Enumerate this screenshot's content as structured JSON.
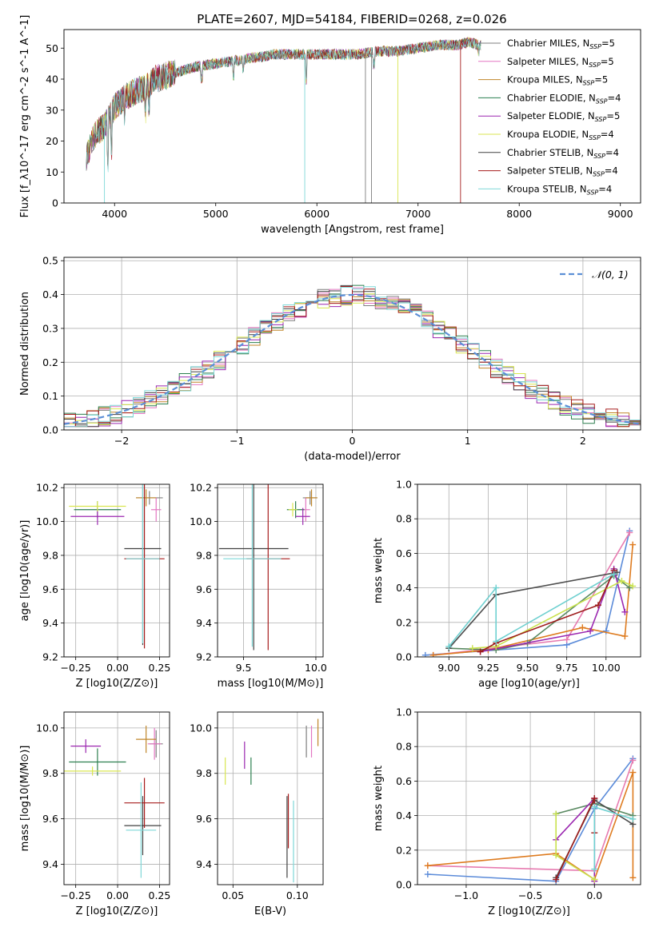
{
  "figure": {
    "title": "PLATE=2607, MJD=54184, FIBERID=0268, z=0.026"
  },
  "colors": {
    "model_colors": [
      "#7f7f7f",
      "#e377c2",
      "#c0862a",
      "#2c7f4f",
      "#9b27b0",
      "#d9e650",
      "#404040",
      "#a61c1c",
      "#7fd8d8"
    ],
    "weight_colors": [
      "#5b8bd9",
      "#e77bb0",
      "#de7b1f",
      "#5a8a62",
      "#9b27b0",
      "#c9e24d",
      "#4d4d4d",
      "#9e1c1c",
      "#6fd0d0"
    ],
    "normal_line": "#5b8fd6"
  },
  "legend": {
    "entries": [
      "Chabrier MILES, N_SSP=5",
      "Salpeter MILES, N_SSP=5",
      "Kroupa MILES, N_SSP=5",
      "Chabrier ELODIE, N_SSP=4",
      "Salpeter ELODIE, N_SSP=5",
      "Kroupa ELODIE, N_SSP=4",
      "Chabrier STELIB, N_SSP=4",
      "Salpeter STELIB, N_SSP=4",
      "Kroupa STELIB, N_SSP=4"
    ],
    "normal_label": "𝒩(0, 1)"
  },
  "chart_data": [
    {
      "id": "spectrum",
      "type": "line",
      "xlabel": "wavelength [Angstrom, rest frame]",
      "ylabel": "Flux [f_λ10^-17 erg cm^-2 s^-1 A^-1]",
      "xlim": [
        3500,
        9200
      ],
      "ylim": [
        0,
        56
      ],
      "xticks": [
        4000,
        5000,
        6000,
        7000,
        8000,
        9000
      ],
      "yticks": [
        0,
        10,
        20,
        30,
        40,
        50
      ],
      "grid": false,
      "legend_position": "right",
      "continuum": [
        {
          "x": 3720,
          "y": 15
        },
        {
          "x": 3800,
          "y": 22
        },
        {
          "x": 3900,
          "y": 25
        },
        {
          "x": 4000,
          "y": 31
        },
        {
          "x": 4100,
          "y": 34
        },
        {
          "x": 4200,
          "y": 36
        },
        {
          "x": 4300,
          "y": 37
        },
        {
          "x": 4400,
          "y": 40
        },
        {
          "x": 4500,
          "y": 41
        },
        {
          "x": 4600,
          "y": 42
        },
        {
          "x": 4800,
          "y": 44
        },
        {
          "x": 5000,
          "y": 45
        },
        {
          "x": 5200,
          "y": 46
        },
        {
          "x": 5400,
          "y": 47
        },
        {
          "x": 5600,
          "y": 48
        },
        {
          "x": 5800,
          "y": 48
        },
        {
          "x": 6000,
          "y": 48
        },
        {
          "x": 6200,
          "y": 48
        },
        {
          "x": 6400,
          "y": 48
        },
        {
          "x": 6600,
          "y": 49
        },
        {
          "x": 6800,
          "y": 49
        },
        {
          "x": 7000,
          "y": 50
        },
        {
          "x": 7200,
          "y": 51
        },
        {
          "x": 7400,
          "y": 51
        },
        {
          "x": 7500,
          "y": 52
        },
        {
          "x": 7600,
          "y": 51
        }
      ],
      "x_end": 7620
    },
    {
      "id": "residual_hist",
      "type": "line",
      "xlabel": "(data-model)/error",
      "ylabel": "Normed distribution",
      "xlim": [
        -2.5,
        2.5
      ],
      "ylim": [
        0,
        0.51
      ],
      "xticks": [
        -2,
        -1,
        0,
        1,
        2
      ],
      "yticks": [
        0,
        0.1,
        0.2,
        0.3,
        0.4,
        0.5
      ],
      "grid": true,
      "legend_position": "top-right",
      "bin_width": 0.1,
      "normal": {
        "mean": 0,
        "sigma": 1
      }
    },
    {
      "id": "age_vs_z",
      "type": "scatter",
      "xlabel": "Z [log10(Z/Z⊙)]",
      "ylabel": "age  [log10(age/yr)]",
      "xlim": [
        -0.32,
        0.31
      ],
      "ylim": [
        9.2,
        10.22
      ],
      "xticks": [
        -0.25,
        0,
        0.25
      ],
      "yticks": [
        9.2,
        9.4,
        9.6,
        9.8,
        10.0,
        10.2
      ],
      "grid": true,
      "points": [
        {
          "x": 0.19,
          "y": 10.14,
          "xerr": 0.08,
          "yerr": 0.04
        },
        {
          "x": 0.23,
          "y": 10.07,
          "xerr": 0.03,
          "yerr": 0.07
        },
        {
          "x": 0.17,
          "y": 10.14,
          "xerr": 0.06,
          "yerr": 0.05
        },
        {
          "x": -0.12,
          "y": 10.07,
          "xerr": 0.14,
          "yerr": 0.05
        },
        {
          "x": -0.12,
          "y": 10.03,
          "xerr": 0.16,
          "yerr": 0.05
        },
        {
          "x": -0.12,
          "y": 10.09,
          "xerr": 0.17,
          "yerr": 0.03
        },
        {
          "x": 0.15,
          "y": 9.84,
          "xerr": 0.11,
          "yerr": 0.57
        },
        {
          "x": 0.16,
          "y": 9.78,
          "xerr": 0.12,
          "yerr": 0.53
        },
        {
          "x": 0.15,
          "y": 9.78,
          "xerr": 0.1,
          "yerr": 0.5
        }
      ]
    },
    {
      "id": "age_vs_mass",
      "type": "scatter",
      "xlabel": "mass [log10(M/M⊙)]",
      "ylabel": "",
      "xlim": [
        9.32,
        10.05
      ],
      "ylim": [
        9.2,
        10.22
      ],
      "xticks": [
        9.5,
        10.0
      ],
      "yticks": [
        9.2,
        9.4,
        9.6,
        9.8,
        10.0,
        10.2
      ],
      "grid": true,
      "points": [
        {
          "x": 9.96,
          "y": 10.14,
          "xerr": 0.05,
          "yerr": 0.04
        },
        {
          "x": 9.93,
          "y": 10.07,
          "xerr": 0.03,
          "yerr": 0.07
        },
        {
          "x": 9.97,
          "y": 10.14,
          "xerr": 0.04,
          "yerr": 0.05
        },
        {
          "x": 9.86,
          "y": 10.07,
          "xerr": 0.06,
          "yerr": 0.05
        },
        {
          "x": 9.91,
          "y": 10.03,
          "xerr": 0.05,
          "yerr": 0.05
        },
        {
          "x": 9.84,
          "y": 10.07,
          "xerr": 0.03,
          "yerr": 0.04
        },
        {
          "x": 9.57,
          "y": 9.84,
          "xerr": 0.24,
          "yerr": 0.6
        },
        {
          "x": 9.67,
          "y": 9.78,
          "xerr": 0.15,
          "yerr": 0.54
        },
        {
          "x": 9.56,
          "y": 9.78,
          "xerr": 0.2,
          "yerr": 0.52
        }
      ]
    },
    {
      "id": "weight_vs_age",
      "type": "line",
      "xlabel": "age  [log10(age/yr)]",
      "ylabel": "mass weight",
      "xlim": [
        8.8,
        10.22
      ],
      "ylim": [
        0,
        1.0
      ],
      "xticks": [
        9.0,
        9.25,
        9.5,
        9.75,
        10.0
      ],
      "yticks": [
        0,
        0.2,
        0.4,
        0.6,
        0.8,
        1.0
      ],
      "grid": true,
      "series": [
        {
          "x": [
            8.85,
            9.75,
            10.0,
            10.15
          ],
          "y": [
            0.01,
            0.07,
            0.15,
            0.73
          ]
        },
        {
          "x": [
            8.9,
            9.75,
            10.15
          ],
          "y": [
            0.01,
            0.1,
            0.72
          ]
        },
        {
          "x": [
            8.9,
            9.25,
            9.85,
            10.12,
            10.17
          ],
          "y": [
            0.01,
            0.04,
            0.17,
            0.12,
            0.65
          ]
        },
        {
          "x": [
            9.0,
            9.3,
            9.5,
            10.05,
            10.15
          ],
          "y": [
            0.05,
            0.04,
            0.08,
            0.47,
            0.4
          ]
        },
        {
          "x": [
            9.2,
            9.9,
            10.05,
            10.12
          ],
          "y": [
            0.03,
            0.15,
            0.51,
            0.26
          ]
        },
        {
          "x": [
            9.15,
            9.3,
            10.1,
            10.17
          ],
          "y": [
            0.05,
            0.06,
            0.44,
            0.41
          ]
        },
        {
          "x": [
            9.0,
            9.3,
            10.07
          ],
          "y": [
            0.05,
            0.36,
            0.49
          ]
        },
        {
          "x": [
            9.2,
            9.3,
            9.95,
            10.05
          ],
          "y": [
            0.03,
            0.08,
            0.3,
            0.5
          ]
        },
        {
          "x": [
            9.0,
            9.3,
            9.3,
            10.05
          ],
          "y": [
            0.06,
            0.4,
            0.09,
            0.48
          ]
        }
      ]
    },
    {
      "id": "mass_vs_z",
      "type": "scatter",
      "xlabel": "Z [log10(Z/Z⊙)]",
      "ylabel": "mass [log10(M/M⊙)]",
      "xlim": [
        -0.32,
        0.31
      ],
      "ylim": [
        9.31,
        10.07
      ],
      "xticks": [
        -0.25,
        0,
        0.25
      ],
      "yticks": [
        9.4,
        9.6,
        9.8,
        10.0
      ],
      "grid": true,
      "points": [
        {
          "x": 0.23,
          "y": 9.93,
          "xerr": 0.04,
          "yerr": 0.06
        },
        {
          "x": 0.22,
          "y": 9.93,
          "xerr": 0.04,
          "yerr": 0.07
        },
        {
          "x": 0.17,
          "y": 9.95,
          "xerr": 0.06,
          "yerr": 0.06
        },
        {
          "x": -0.12,
          "y": 9.85,
          "xerr": 0.17,
          "yerr": 0.06
        },
        {
          "x": -0.19,
          "y": 9.92,
          "xerr": 0.09,
          "yerr": 0.03
        },
        {
          "x": -0.15,
          "y": 9.81,
          "xerr": 0.17,
          "yerr": 0.02
        },
        {
          "x": 0.15,
          "y": 9.57,
          "xerr": 0.11,
          "yerr": 0.13
        },
        {
          "x": 0.16,
          "y": 9.67,
          "xerr": 0.12,
          "yerr": 0.11
        },
        {
          "x": 0.14,
          "y": 9.55,
          "xerr": 0.09,
          "yerr": 0.21
        }
      ]
    },
    {
      "id": "mass_vs_ebv",
      "type": "scatter",
      "xlabel": "E(B-V)",
      "ylabel": "",
      "xlim": [
        0.038,
        0.12
      ],
      "ylim": [
        9.31,
        10.07
      ],
      "xticks": [
        0.05,
        0.1
      ],
      "yticks": [
        9.4,
        9.6,
        9.8,
        10.0
      ],
      "grid": true,
      "points": [
        {
          "x": 0.107,
          "y": 9.94,
          "xerr": 0.0,
          "yerr": 0.07
        },
        {
          "x": 0.111,
          "y": 9.94,
          "xerr": 0.0,
          "yerr": 0.07
        },
        {
          "x": 0.116,
          "y": 9.98,
          "xerr": 0.0,
          "yerr": 0.06
        },
        {
          "x": 0.064,
          "y": 9.81,
          "xerr": 0.0,
          "yerr": 0.06
        },
        {
          "x": 0.059,
          "y": 9.88,
          "xerr": 0.0,
          "yerr": 0.06
        },
        {
          "x": 0.044,
          "y": 9.81,
          "xerr": 0.0,
          "yerr": 0.06
        },
        {
          "x": 0.092,
          "y": 9.52,
          "xerr": 0.0,
          "yerr": 0.18
        },
        {
          "x": 0.093,
          "y": 9.59,
          "xerr": 0.0,
          "yerr": 0.12
        },
        {
          "x": 0.097,
          "y": 9.5,
          "xerr": 0.0,
          "yerr": 0.18
        }
      ]
    },
    {
      "id": "weight_vs_z",
      "type": "line",
      "xlabel": "Z [log10(Z/Z⊙)]",
      "ylabel": "mass weight",
      "xlim": [
        -1.38,
        0.36
      ],
      "ylim": [
        0,
        1.0
      ],
      "xticks": [
        -1.0,
        -0.5,
        0.0
      ],
      "yticks": [
        0,
        0.2,
        0.4,
        0.6,
        0.8,
        1.0
      ],
      "grid": true,
      "series": [
        {
          "x": [
            -1.3,
            -0.3,
            0.0,
            0.3
          ],
          "y": [
            0.06,
            0.02,
            0.44,
            0.73
          ]
        },
        {
          "x": [
            -1.3,
            0.0,
            0.3
          ],
          "y": [
            0.11,
            0.08,
            0.72
          ]
        },
        {
          "x": [
            -1.3,
            -0.3,
            0.0,
            0.3,
            0.3
          ],
          "y": [
            0.11,
            0.18,
            0.03,
            0.65,
            0.04
          ]
        },
        {
          "x": [
            -0.3,
            0.0,
            0.3
          ],
          "y": [
            0.41,
            0.47,
            0.4
          ]
        },
        {
          "x": [
            -0.3,
            0.0,
            0.0
          ],
          "y": [
            0.26,
            0.5,
            0.02
          ]
        },
        {
          "x": [
            -0.3,
            -0.3,
            0.0
          ],
          "y": [
            0.41,
            0.17,
            0.03
          ]
        },
        {
          "x": [
            -0.3,
            0.0,
            0.3
          ],
          "y": [
            0.04,
            0.49,
            0.35
          ]
        },
        {
          "x": [
            -0.3,
            0.0,
            0.0
          ],
          "y": [
            0.03,
            0.5,
            0.3
          ]
        },
        {
          "x": [
            0.0,
            0.0,
            0.3
          ],
          "y": [
            0.09,
            0.45,
            0.38
          ]
        }
      ]
    }
  ]
}
